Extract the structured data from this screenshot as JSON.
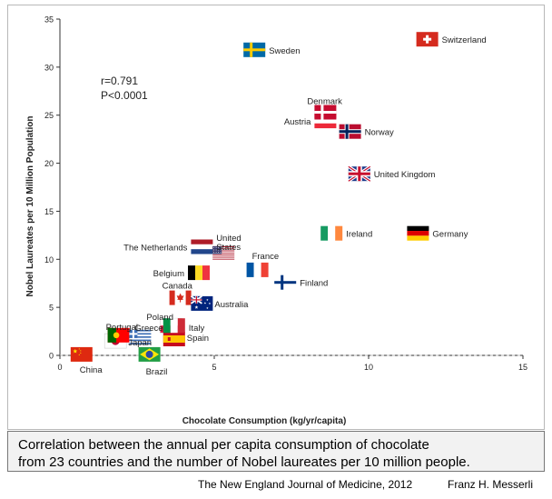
{
  "chart_data": {
    "type": "scatter",
    "title": "",
    "xlabel": "Chocolate Consumption (kg/yr/capita)",
    "ylabel": "Nobel Laureates per 10 Million Population",
    "xlim": [
      0,
      15
    ],
    "ylim": [
      0,
      35
    ],
    "xticks": [
      0,
      5,
      10,
      15
    ],
    "yticks": [
      0,
      5,
      10,
      15,
      20,
      25,
      30,
      35
    ],
    "grid": false,
    "stats": {
      "r": "r=0.791",
      "p": "P<0.0001"
    },
    "points": [
      {
        "country": "China",
        "label": "China",
        "x": 0.7,
        "y": 0.1,
        "flag": "china"
      },
      {
        "country": "Japan",
        "label": "Japan",
        "x": 1.8,
        "y": 1.5,
        "flag": "japan"
      },
      {
        "country": "Portugal",
        "label": "Portugal",
        "x": 1.9,
        "y": 2.1,
        "flag": "portugal"
      },
      {
        "country": "Greece",
        "label": "Greece",
        "x": 2.6,
        "y": 1.9,
        "flag": "greece"
      },
      {
        "country": "Brazil",
        "label": "Brazil",
        "x": 2.9,
        "y": 0.1,
        "flag": "brazil"
      },
      {
        "country": "Poland",
        "label": "Poland",
        "x": 3.6,
        "y": 3.1,
        "flag": "poland"
      },
      {
        "country": "Spain",
        "label": "Spain",
        "x": 3.7,
        "y": 1.7,
        "flag": "spain"
      },
      {
        "country": "Italy",
        "label": "Italy",
        "x": 3.7,
        "y": 3.1,
        "flag": "italy"
      },
      {
        "country": "Canada",
        "label": "Canada",
        "x": 3.9,
        "y": 6.0,
        "flag": "canada"
      },
      {
        "country": "Australia",
        "label": "Australia",
        "x": 4.6,
        "y": 5.4,
        "flag": "australia"
      },
      {
        "country": "Belgium",
        "label": "Belgium",
        "x": 4.5,
        "y": 8.6,
        "flag": "belgium"
      },
      {
        "country": "The Netherlands",
        "label": "The Netherlands",
        "x": 4.6,
        "y": 11.3,
        "flag": "netherlands"
      },
      {
        "country": "United States",
        "label": "United States",
        "x": 5.3,
        "y": 10.6,
        "flag": "usa"
      },
      {
        "country": "France",
        "label": "France",
        "x": 6.4,
        "y": 8.9,
        "flag": "france"
      },
      {
        "country": "Finland",
        "label": "Finland",
        "x": 7.3,
        "y": 7.6,
        "flag": "finland"
      },
      {
        "country": "Ireland",
        "label": "Ireland",
        "x": 8.8,
        "y": 12.7,
        "flag": "ireland"
      },
      {
        "country": "Germany",
        "label": "Germany",
        "x": 11.6,
        "y": 12.7,
        "flag": "germany"
      },
      {
        "country": "Norway",
        "label": "Norway",
        "x": 9.4,
        "y": 23.3,
        "flag": "norway"
      },
      {
        "country": "Austria",
        "label": "Austria",
        "x": 8.6,
        "y": 24.4,
        "flag": "austria"
      },
      {
        "country": "Denmark",
        "label": "Denmark",
        "x": 8.6,
        "y": 25.3,
        "flag": "denmark"
      },
      {
        "country": "United Kingdom",
        "label": "United Kingdom",
        "x": 9.7,
        "y": 18.9,
        "flag": "uk"
      },
      {
        "country": "Sweden",
        "label": "Sweden",
        "x": 6.3,
        "y": 31.8,
        "flag": "sweden"
      },
      {
        "country": "Switzerland",
        "label": "Switzerland",
        "x": 11.9,
        "y": 32.9,
        "flag": "switzerland"
      }
    ]
  },
  "caption": {
    "line1": "Correlation between the annual per capita consumption of chocolate",
    "line2": "from 23 countries  and the number of Nobel laureates per 10 million people."
  },
  "source": "The New England Journal of Medicine, 2012",
  "author": "Franz H. Messerli"
}
